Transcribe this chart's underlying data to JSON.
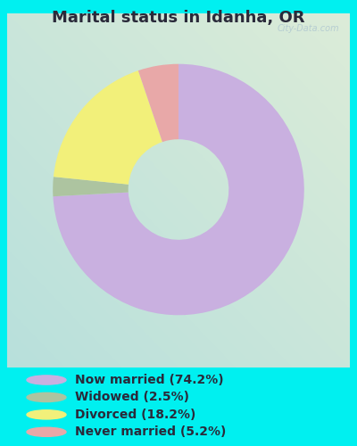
{
  "title": "Marital status in Idanha, OR",
  "slices": [
    74.2,
    2.5,
    18.2,
    5.2
  ],
  "labels": [
    "Now married (74.2%)",
    "Widowed (2.5%)",
    "Divorced (18.2%)",
    "Never married (5.2%)"
  ],
  "colors": [
    "#c9b0e0",
    "#adc4a0",
    "#f2f07a",
    "#e8a8a8"
  ],
  "bg_color_tl": "#c8e8e0",
  "bg_color_br": "#dcecd8",
  "outer_bg": "#00f0f0",
  "title_color": "#2a2a3a",
  "donut_width": 0.6,
  "startangle": 90,
  "watermark": "City-Data.com",
  "legend_fontsize": 10,
  "title_fontsize": 13
}
